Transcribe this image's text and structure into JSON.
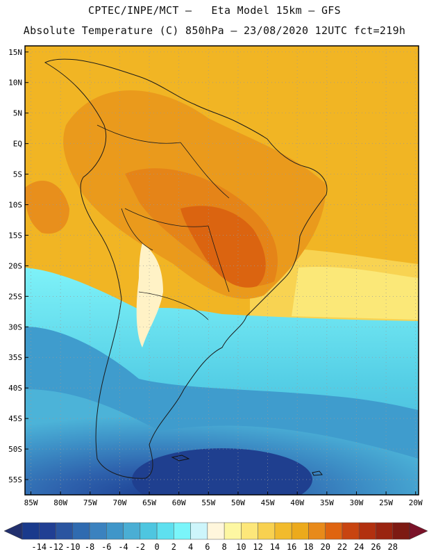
{
  "header": {
    "line1": "CPTEC/INPE/MCT –   Eta Model 15km – GFS",
    "line2": "Absolute Temperature (C) 850hPa – 23/08/2020 12UTC fct=219h"
  },
  "map": {
    "lat_labels": [
      "15N",
      "10N",
      "5N",
      "EQ",
      "5S",
      "10S",
      "15S",
      "20S",
      "25S",
      "30S",
      "35S",
      "40S",
      "45S",
      "50S",
      "55S"
    ],
    "lon_labels": [
      "85W",
      "80W",
      "75W",
      "70W",
      "65W",
      "60W",
      "55W",
      "50W",
      "45W",
      "40W",
      "35W",
      "30W",
      "25W",
      "20W"
    ],
    "lat_range": [
      16,
      -57.5
    ],
    "lon_range": [
      -86,
      -19.5
    ]
  },
  "colorbar": {
    "labels": [
      "-14",
      "-12",
      "-10",
      "-8",
      "-6",
      "-4",
      "-2",
      "0",
      "2",
      "4",
      "6",
      "8",
      "10",
      "12",
      "14",
      "16",
      "18",
      "20",
      "22",
      "24",
      "26",
      "28"
    ],
    "colors": [
      "#1a3a8c",
      "#213f93",
      "#2a55a0",
      "#2f6bb0",
      "#3b82bf",
      "#3f96c9",
      "#4aaed4",
      "#4ec6e0",
      "#5ee0ef",
      "#7af5fa",
      "#cdf5fb",
      "#fff6dc",
      "#fdf7a2",
      "#fde77a",
      "#f8d150",
      "#f2bb2c",
      "#ecaa1c",
      "#e88a1a",
      "#df6410",
      "#c84410",
      "#b2300f",
      "#9a2410",
      "#7d1a12"
    ],
    "left_arrow_color": "#22306e",
    "right_arrow_color": "#7a1228"
  }
}
